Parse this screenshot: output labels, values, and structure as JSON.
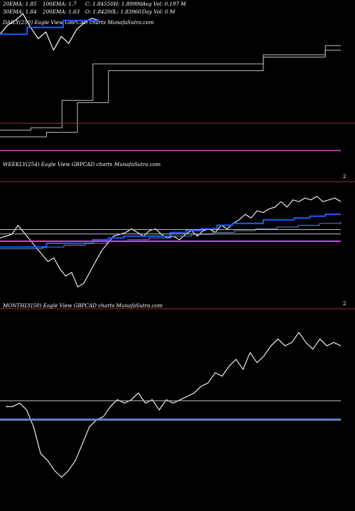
{
  "header": {
    "row1": [
      "20EMA: 1.85",
      "100EMA: 1.7",
      "C: 1.84550",
      "H: 1.89990",
      "Avg Vol: 0.197 M"
    ],
    "row2": [
      "30EMA: 1.84",
      "200EMA: 1.63",
      "O: 1.84200",
      "L: 1.83960",
      "Day Vol: 0  M"
    ]
  },
  "colors": {
    "background": "#000000",
    "price": "#ffffff",
    "ema_blue": "#1a5cff",
    "ema_pale_blue": "#5f86c9",
    "magenta": "#e040e0",
    "panel_divider": "#8a3a1a",
    "gray_line": "#bdbdbd"
  },
  "chart_data": [
    {
      "type": "line",
      "title": "DAILY(250) Eagle  View  GBPCAD charts MunafaSutra.com",
      "ylim": [
        1.81,
        1.88
      ],
      "series": [
        {
          "role": "price",
          "values": [
            1.865,
            1.869,
            1.871,
            1.874,
            1.868,
            1.863,
            1.866,
            1.858,
            1.864,
            1.861,
            1.867,
            1.87,
            1.872,
            1.871
          ]
        },
        {
          "role": "ema-step",
          "values": [
            1.865,
            1.865,
            1.865,
            1.868,
            1.868,
            1.868,
            1.868,
            1.871,
            1.871,
            1.871,
            1.871,
            1.871
          ]
        },
        {
          "role": "upper-step",
          "values": [
            1.823,
            1.823,
            1.824,
            1.824,
            1.836,
            1.836,
            1.852,
            1.852,
            1.852,
            1.852,
            1.852,
            1.852,
            1.852,
            1.852,
            1.852,
            1.852,
            1.852,
            1.856,
            1.856,
            1.856,
            1.856,
            1.86,
            1.86
          ]
        },
        {
          "role": "lower-step",
          "values": [
            1.82,
            1.82,
            1.82,
            1.822,
            1.822,
            1.835,
            1.835,
            1.849,
            1.849,
            1.849,
            1.849,
            1.849,
            1.849,
            1.849,
            1.849,
            1.849,
            1.849,
            1.855,
            1.855,
            1.855,
            1.855,
            1.858,
            1.858
          ]
        },
        {
          "role": "magenta-level",
          "values": [
            1.814,
            1.814
          ]
        },
        {
          "role": "divider-level",
          "values": [
            1.826,
            1.826
          ]
        }
      ]
    },
    {
      "type": "line",
      "title": "WEEKLY(254) Eagle  View  GBPCAD charts MunafaSutra.com",
      "edge_label": "2",
      "ylim": [
        1.6,
        1.95
      ],
      "series": [
        {
          "role": "price",
          "values": [
            1.795,
            1.8,
            1.805,
            1.83,
            1.81,
            1.79,
            1.77,
            1.75,
            1.73,
            1.74,
            1.71,
            1.69,
            1.7,
            1.66,
            1.67,
            1.7,
            1.73,
            1.76,
            1.78,
            1.8,
            1.805,
            1.81,
            1.82,
            1.81,
            1.8,
            1.815,
            1.82,
            1.805,
            1.795,
            1.8,
            1.79,
            1.805,
            1.815,
            1.8,
            1.815,
            1.82,
            1.81,
            1.83,
            1.82,
            1.835,
            1.845,
            1.86,
            1.85,
            1.87,
            1.865,
            1.875,
            1.88,
            1.895,
            1.88,
            1.9,
            1.895,
            1.905,
            1.9,
            1.91,
            1.895,
            1.9,
            1.905,
            1.895
          ]
        },
        {
          "role": "ema-blue",
          "values": [
            1.77,
            1.77,
            1.77,
            1.78,
            1.78,
            1.78,
            1.79,
            1.795,
            1.8,
            1.8,
            1.8,
            1.81,
            1.815,
            1.82,
            1.83,
            1.835,
            1.835,
            1.845,
            1.845,
            1.85,
            1.855,
            1.86,
            1.86
          ]
        },
        {
          "role": "ema-pale",
          "values": [
            1.765,
            1.765,
            1.77,
            1.775,
            1.78,
            1.785,
            1.79,
            1.795,
            1.8,
            1.805,
            1.81,
            1.815,
            1.82,
            1.825,
            1.83,
            1.835,
            1.84
          ]
        },
        {
          "role": "gray-upper",
          "values": [
            1.818,
            1.818
          ]
        },
        {
          "role": "gray-lower",
          "values": [
            1.806,
            1.806
          ]
        },
        {
          "role": "magenta-level",
          "values": [
            1.786,
            1.786
          ]
        }
      ]
    },
    {
      "type": "line",
      "title": "MONTHLY(50) Eagle  View  GBPCAD charts MunafaSutra.com",
      "edge_label": "2",
      "ylim": [
        1.45,
        2.05
      ],
      "series": [
        {
          "role": "price",
          "values": [
            1.76,
            1.76,
            1.77,
            1.75,
            1.7,
            1.62,
            1.6,
            1.57,
            1.55,
            1.57,
            1.6,
            1.65,
            1.7,
            1.72,
            1.73,
            1.76,
            1.78,
            1.77,
            1.78,
            1.8,
            1.77,
            1.78,
            1.75,
            1.78,
            1.77,
            1.78,
            1.79,
            1.8,
            1.82,
            1.83,
            1.86,
            1.85,
            1.88,
            1.9,
            1.87,
            1.92,
            1.89,
            1.91,
            1.94,
            1.96,
            1.94,
            1.95,
            1.98,
            1.95,
            1.93,
            1.96,
            1.94,
            1.95,
            1.94
          ]
        },
        {
          "role": "gray-level",
          "values": [
            1.777,
            1.777
          ]
        },
        {
          "role": "blue-level",
          "values": [
            1.721,
            1.721
          ]
        }
      ]
    }
  ]
}
